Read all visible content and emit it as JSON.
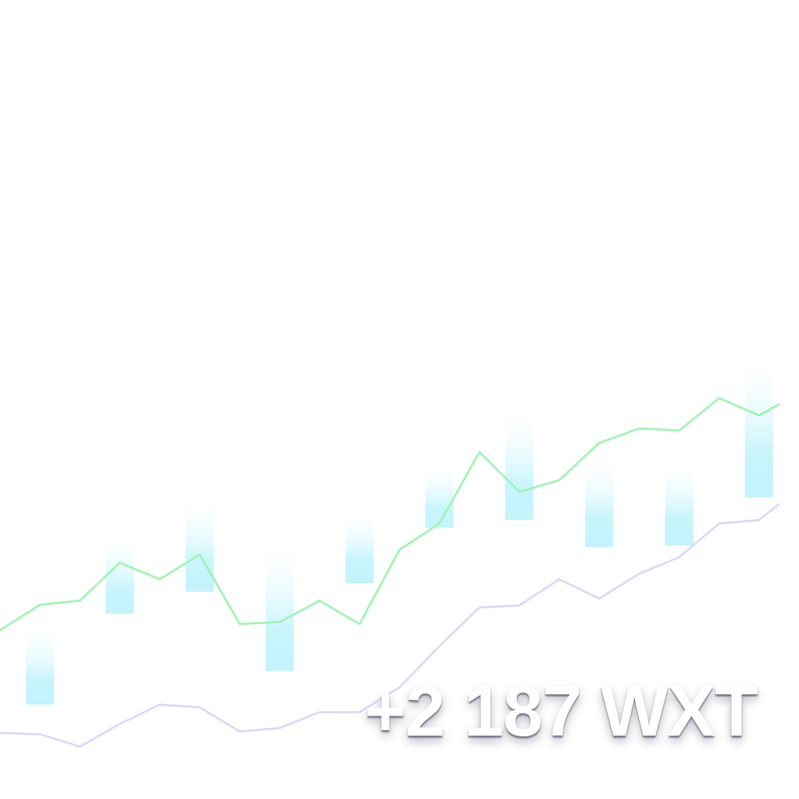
{
  "headline": {
    "value_label": "+2 187 WXT"
  },
  "colors": {
    "background": "#ffffff",
    "bars": "#c3f3fc",
    "upper_line": "#9df5b0",
    "lower_line": "#dcd6f8",
    "headline_text": "#ffffff"
  },
  "chart_data": {
    "type": "bar",
    "grid": false,
    "legend": "none",
    "ylim": [
      0,
      1160
    ],
    "x_range": [
      0,
      20
    ],
    "bars": {
      "x": [
        1,
        3,
        5,
        7,
        9,
        11,
        13,
        15,
        17,
        19
      ],
      "top": [
        260,
        390,
        445,
        385,
        425,
        490,
        575,
        505,
        500,
        655
      ],
      "bottom": [
        137,
        269,
        301,
        186,
        313,
        394,
        405,
        366,
        368,
        438
      ]
    },
    "series": [
      {
        "x": [
          0,
          1,
          2,
          3,
          4,
          5,
          6,
          7,
          8,
          9,
          10,
          11,
          12,
          13,
          14,
          15,
          16,
          17,
          18,
          19,
          19.5
        ],
        "values": [
          245,
          282,
          288,
          343,
          319,
          355,
          254,
          257,
          288,
          254,
          362,
          400,
          504,
          446,
          463,
          517,
          538,
          535,
          582,
          557,
          573
        ]
      },
      {
        "x": [
          0,
          1,
          2,
          3,
          4,
          5,
          6,
          7,
          8,
          9,
          10,
          11,
          12,
          13,
          14,
          15,
          16,
          17,
          18,
          19,
          19.5
        ],
        "values": [
          96,
          94,
          76,
          109,
          137,
          133,
          98,
          103,
          126,
          126,
          162,
          222,
          278,
          281,
          319,
          291,
          327,
          351,
          400,
          405,
          428
        ]
      }
    ]
  }
}
